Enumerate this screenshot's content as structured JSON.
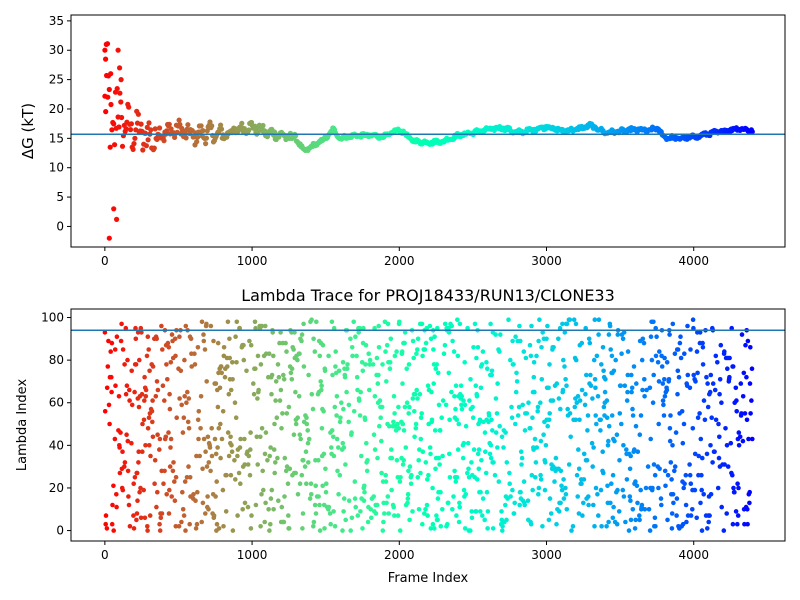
{
  "chart_data": [
    {
      "type": "scatter",
      "title": "",
      "xlabel": "",
      "ylabel": "ΔG (kT)",
      "xlim": [
        -230,
        4620
      ],
      "ylim": [
        -3.5,
        36
      ],
      "xticks": [
        0,
        1000,
        2000,
        3000,
        4000
      ],
      "yticks": [
        0,
        5,
        10,
        15,
        20,
        25,
        30,
        35
      ],
      "hline": 15.7,
      "hline_color": "#1f77b4",
      "colormap": "rainbow (red at frame 0 → violet at frame 4400)",
      "n_frames": 4400,
      "trace": [
        [
          0,
          20
        ],
        [
          50,
          18
        ],
        [
          100,
          17.5
        ],
        [
          150,
          17
        ],
        [
          200,
          16.5
        ],
        [
          300,
          15
        ],
        [
          400,
          16
        ],
        [
          500,
          16.5
        ],
        [
          600,
          15.5
        ],
        [
          700,
          16
        ],
        [
          800,
          15.5
        ],
        [
          900,
          16.5
        ],
        [
          1000,
          17
        ],
        [
          1100,
          16
        ],
        [
          1200,
          15.5
        ],
        [
          1300,
          15
        ],
        [
          1350,
          12.8
        ],
        [
          1400,
          13.5
        ],
        [
          1500,
          15
        ],
        [
          1550,
          16.5
        ],
        [
          1600,
          15
        ],
        [
          1700,
          15.5
        ],
        [
          1800,
          15.5
        ],
        [
          1900,
          15.3
        ],
        [
          2000,
          16.5
        ],
        [
          2100,
          14.5
        ],
        [
          2200,
          14.3
        ],
        [
          2300,
          14.5
        ],
        [
          2400,
          15.5
        ],
        [
          2500,
          16
        ],
        [
          2600,
          16.5
        ],
        [
          2700,
          16.8
        ],
        [
          2800,
          16
        ],
        [
          2900,
          16.4
        ],
        [
          3000,
          17
        ],
        [
          3100,
          16.3
        ],
        [
          3200,
          16.5
        ],
        [
          3300,
          17.2
        ],
        [
          3400,
          16
        ],
        [
          3500,
          16.2
        ],
        [
          3600,
          16.5
        ],
        [
          3700,
          16.3
        ],
        [
          3750,
          16.8
        ],
        [
          3800,
          15.2
        ],
        [
          3900,
          15
        ],
        [
          4000,
          15.2
        ],
        [
          4100,
          15.8
        ],
        [
          4200,
          16.2
        ],
        [
          4300,
          16.7
        ],
        [
          4400,
          16.3
        ]
      ]
    },
    {
      "type": "scatter",
      "title": "Lambda Trace for PROJ18433/RUN13/CLONE33",
      "xlabel": "Frame Index",
      "ylabel": "Lambda Index",
      "xlim": [
        -230,
        4620
      ],
      "ylim": [
        -4.9,
        104
      ],
      "xticks": [
        0,
        1000,
        2000,
        3000,
        4000
      ],
      "yticks": [
        0,
        20,
        40,
        60,
        80,
        100
      ],
      "hline": 94,
      "hline_color": "#1f77b4",
      "colormap": "rainbow (red at frame 0 → violet at frame 4400)",
      "n_frames": 4400,
      "points_note_values": "Lambda index per frame, uniformly spread 0–99"
    }
  ]
}
